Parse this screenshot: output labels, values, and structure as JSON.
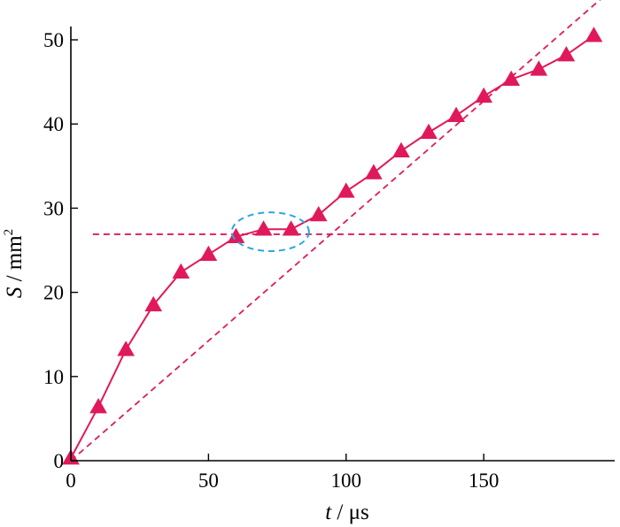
{
  "chart_data": {
    "type": "line",
    "title": "",
    "xlabel": {
      "var": "t",
      "sep": " / ",
      "unit": "μs"
    },
    "ylabel": {
      "var": "S",
      "sep": " / ",
      "unit": "mm",
      "sup": "2"
    },
    "xlim": [
      0,
      195
    ],
    "ylim": [
      0,
      52
    ],
    "xticks": [
      0,
      50,
      100,
      150
    ],
    "yticks": [
      0,
      10,
      20,
      30,
      40,
      50
    ],
    "grid": false,
    "legend": "none",
    "colors": {
      "series": "#e0195a",
      "highlight": "#29a8e0",
      "axis": "#000000"
    },
    "series": [
      {
        "marker": "triangle",
        "x": [
          0,
          10,
          20,
          30,
          40,
          50,
          60,
          70,
          80,
          90,
          100,
          110,
          120,
          130,
          140,
          150,
          160,
          170,
          180,
          190
        ],
        "y": [
          0.3,
          6.4,
          13.2,
          18.5,
          22.4,
          24.5,
          26.6,
          27.5,
          27.5,
          29.2,
          32.0,
          34.2,
          36.8,
          39.0,
          41.0,
          43.3,
          45.3,
          46.5,
          48.2,
          50.5
        ]
      }
    ],
    "reference_lines": [
      {
        "style": "dashed",
        "x": [
          0,
          198
        ],
        "y": [
          0,
          56.4
        ]
      },
      {
        "style": "dashed",
        "x": [
          8,
          192
        ],
        "y": [
          26.9,
          26.9
        ]
      }
    ],
    "annotation_ellipse": {
      "cx": 72.5,
      "cy": 27.2,
      "rx": 14,
      "ry": 2.3
    }
  }
}
